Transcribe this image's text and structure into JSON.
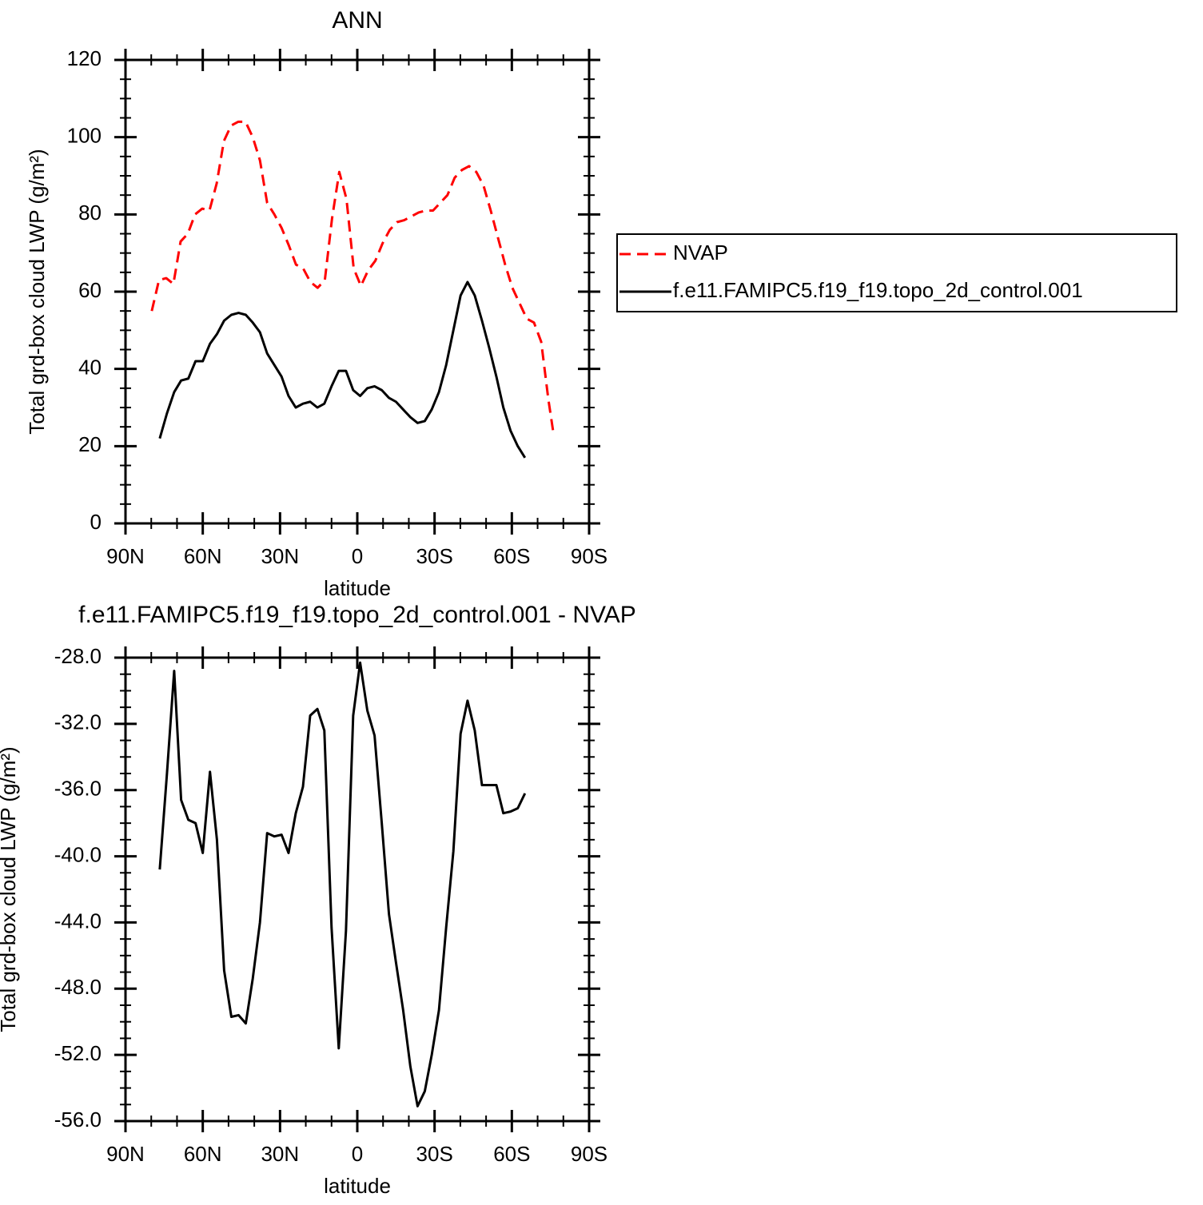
{
  "chart_data": [
    {
      "type": "line",
      "title": "ANN",
      "xlabel": "latitude",
      "ylabel": "Total grd-box cloud LWP (g/m²)",
      "xlim": [
        90,
        -90
      ],
      "xticks": [
        {
          "value": 90,
          "label": "90N"
        },
        {
          "value": 60,
          "label": "60N"
        },
        {
          "value": 30,
          "label": "30N"
        },
        0,
        {
          "value": -30,
          "label": "30S"
        },
        {
          "value": -60,
          "label": "60S"
        },
        {
          "value": -90,
          "label": "90S"
        }
      ],
      "ylim": [
        0,
        120
      ],
      "yticks": [
        0,
        20,
        40,
        60,
        80,
        100,
        120
      ],
      "legend_position": "right",
      "series": [
        {
          "name": "NVAP",
          "color": "#ff0000",
          "linestyle": "dashed",
          "x": [
            79.8,
            77.0,
            74.2,
            71.4,
            68.6,
            65.8,
            63.0,
            60.2,
            57.4,
            54.6,
            51.8,
            49.0,
            46.2,
            43.4,
            40.6,
            37.8,
            35.0,
            32.2,
            29.4,
            26.6,
            23.8,
            21.0,
            18.2,
            15.4,
            12.6,
            9.8,
            7.0,
            4.2,
            1.4,
            -1.4,
            -4.2,
            -7.0,
            -9.8,
            -12.6,
            -15.4,
            -18.2,
            -21.0,
            -23.8,
            -26.6,
            -29.4,
            -32.2,
            -35.0,
            -37.8,
            -40.6,
            -43.4,
            -46.2,
            -49.0,
            -51.8,
            -54.6,
            -57.4,
            -60.2,
            -63.0,
            -65.8,
            -68.6,
            -71.4,
            -74.2,
            -76.0
          ],
          "values": [
            55,
            63,
            63.5,
            62,
            73,
            75,
            80,
            81.5,
            81,
            88,
            99,
            103,
            104,
            104,
            100,
            94,
            83,
            80,
            76.5,
            72,
            67,
            66,
            62.5,
            61,
            63,
            79,
            91,
            84,
            66,
            61.5,
            65.5,
            68,
            72.5,
            76,
            78,
            78.5,
            79.5,
            80.5,
            81,
            81,
            83,
            85,
            89.5,
            91.5,
            92.5,
            91,
            87.5,
            81,
            74,
            67,
            61,
            57,
            53,
            52,
            47,
            32,
            24
          ]
        },
        {
          "name": "f.e11.FAMIPC5.f19_f19.topo_2d_control.001",
          "color": "#000000",
          "linestyle": "solid",
          "x": [
            76.7,
            73.9,
            71.1,
            68.4,
            65.6,
            62.8,
            60.0,
            57.2,
            54.5,
            51.7,
            48.9,
            46.1,
            43.3,
            40.6,
            37.8,
            35.0,
            32.2,
            29.4,
            26.7,
            23.9,
            21.1,
            18.3,
            15.5,
            12.8,
            10.0,
            7.2,
            4.4,
            1.6,
            -1.1,
            -3.9,
            -6.7,
            -9.5,
            -12.3,
            -15.0,
            -17.8,
            -20.6,
            -23.4,
            -26.2,
            -28.9,
            -31.7,
            -34.5,
            -37.3,
            -40.1,
            -42.8,
            -45.6,
            -48.4,
            -51.2,
            -54.0,
            -56.7,
            -59.5,
            -62.3,
            -65.1
          ],
          "values": [
            22,
            28.5,
            34,
            37,
            37.5,
            42,
            42,
            46.5,
            49,
            52.5,
            54,
            54.5,
            54,
            52,
            49.5,
            44,
            41,
            38,
            33,
            30,
            31,
            31.5,
            30,
            31,
            35.5,
            39.5,
            39.5,
            34.5,
            33,
            35,
            35.5,
            34.5,
            32.5,
            31.5,
            29.5,
            27.5,
            26,
            26.5,
            29.5,
            34,
            41,
            50,
            59,
            62.5,
            59,
            52.5,
            45.5,
            38,
            30,
            24,
            20,
            17
          ]
        }
      ]
    },
    {
      "type": "line",
      "title": "f.e11.FAMIPC5.f19_f19.topo_2d_control.001 - NVAP",
      "xlabel": "latitude",
      "ylabel": "Total grd-box cloud LWP (g/m²)",
      "xlim": [
        90,
        -90
      ],
      "xticks": [
        {
          "value": 90,
          "label": "90N"
        },
        {
          "value": 60,
          "label": "60N"
        },
        {
          "value": 30,
          "label": "30N"
        },
        0,
        {
          "value": -30,
          "label": "30S"
        },
        {
          "value": -60,
          "label": "60S"
        },
        {
          "value": -90,
          "label": "90S"
        }
      ],
      "ylim": [
        -56,
        -28
      ],
      "yticks": [
        {
          "value": -56,
          "label": "-56.0"
        },
        {
          "value": -52,
          "label": "-52.0"
        },
        {
          "value": -48,
          "label": "-48.0"
        },
        {
          "value": -44,
          "label": "-44.0"
        },
        {
          "value": -40,
          "label": "-40.0"
        },
        {
          "value": -36,
          "label": "-36.0"
        },
        {
          "value": -32,
          "label": "-32.0"
        },
        {
          "value": -28,
          "label": "-28.0"
        }
      ],
      "color": "#000000",
      "linestyle": "solid",
      "x": [
        76.7,
        73.9,
        71.1,
        68.4,
        65.6,
        62.8,
        60.0,
        57.2,
        54.5,
        51.7,
        48.9,
        46.1,
        43.3,
        40.6,
        37.8,
        35.0,
        32.2,
        29.4,
        26.7,
        23.9,
        21.1,
        18.3,
        15.5,
        12.8,
        10.0,
        7.2,
        4.4,
        1.6,
        -1.1,
        -3.9,
        -6.7,
        -9.5,
        -12.3,
        -15.0,
        -17.8,
        -20.6,
        -23.4,
        -26.2,
        -28.9,
        -31.7,
        -34.5,
        -37.3,
        -40.1,
        -42.8,
        -45.6,
        -48.4,
        -51.2,
        -54.0,
        -56.7,
        -59.5,
        -62.3,
        -65.1
      ],
      "values": [
        -40.8,
        -35,
        -28.8,
        -36.6,
        -37.8,
        -38.0,
        -39.8,
        -34.9,
        -39.0,
        -46.9,
        -49.7,
        -49.6,
        -50.1,
        -47.4,
        -44.0,
        -38.6,
        -38.8,
        -38.7,
        -39.8,
        -37.4,
        -35.8,
        -31.5,
        -31.1,
        -32.4,
        -44.3,
        -51.6,
        -44.5,
        -31.5,
        -28.3,
        -31.2,
        -32.7,
        -38.0,
        -43.5,
        -46.4,
        -49.3,
        -52.7,
        -55.1,
        -54.2,
        -52.0,
        -49.3,
        -44.3,
        -39.7,
        -32.6,
        -30.6,
        -32.4,
        -35.7,
        -35.7,
        -35.7,
        -37.4,
        -37.3,
        -37.1,
        -36.2
      ]
    }
  ]
}
